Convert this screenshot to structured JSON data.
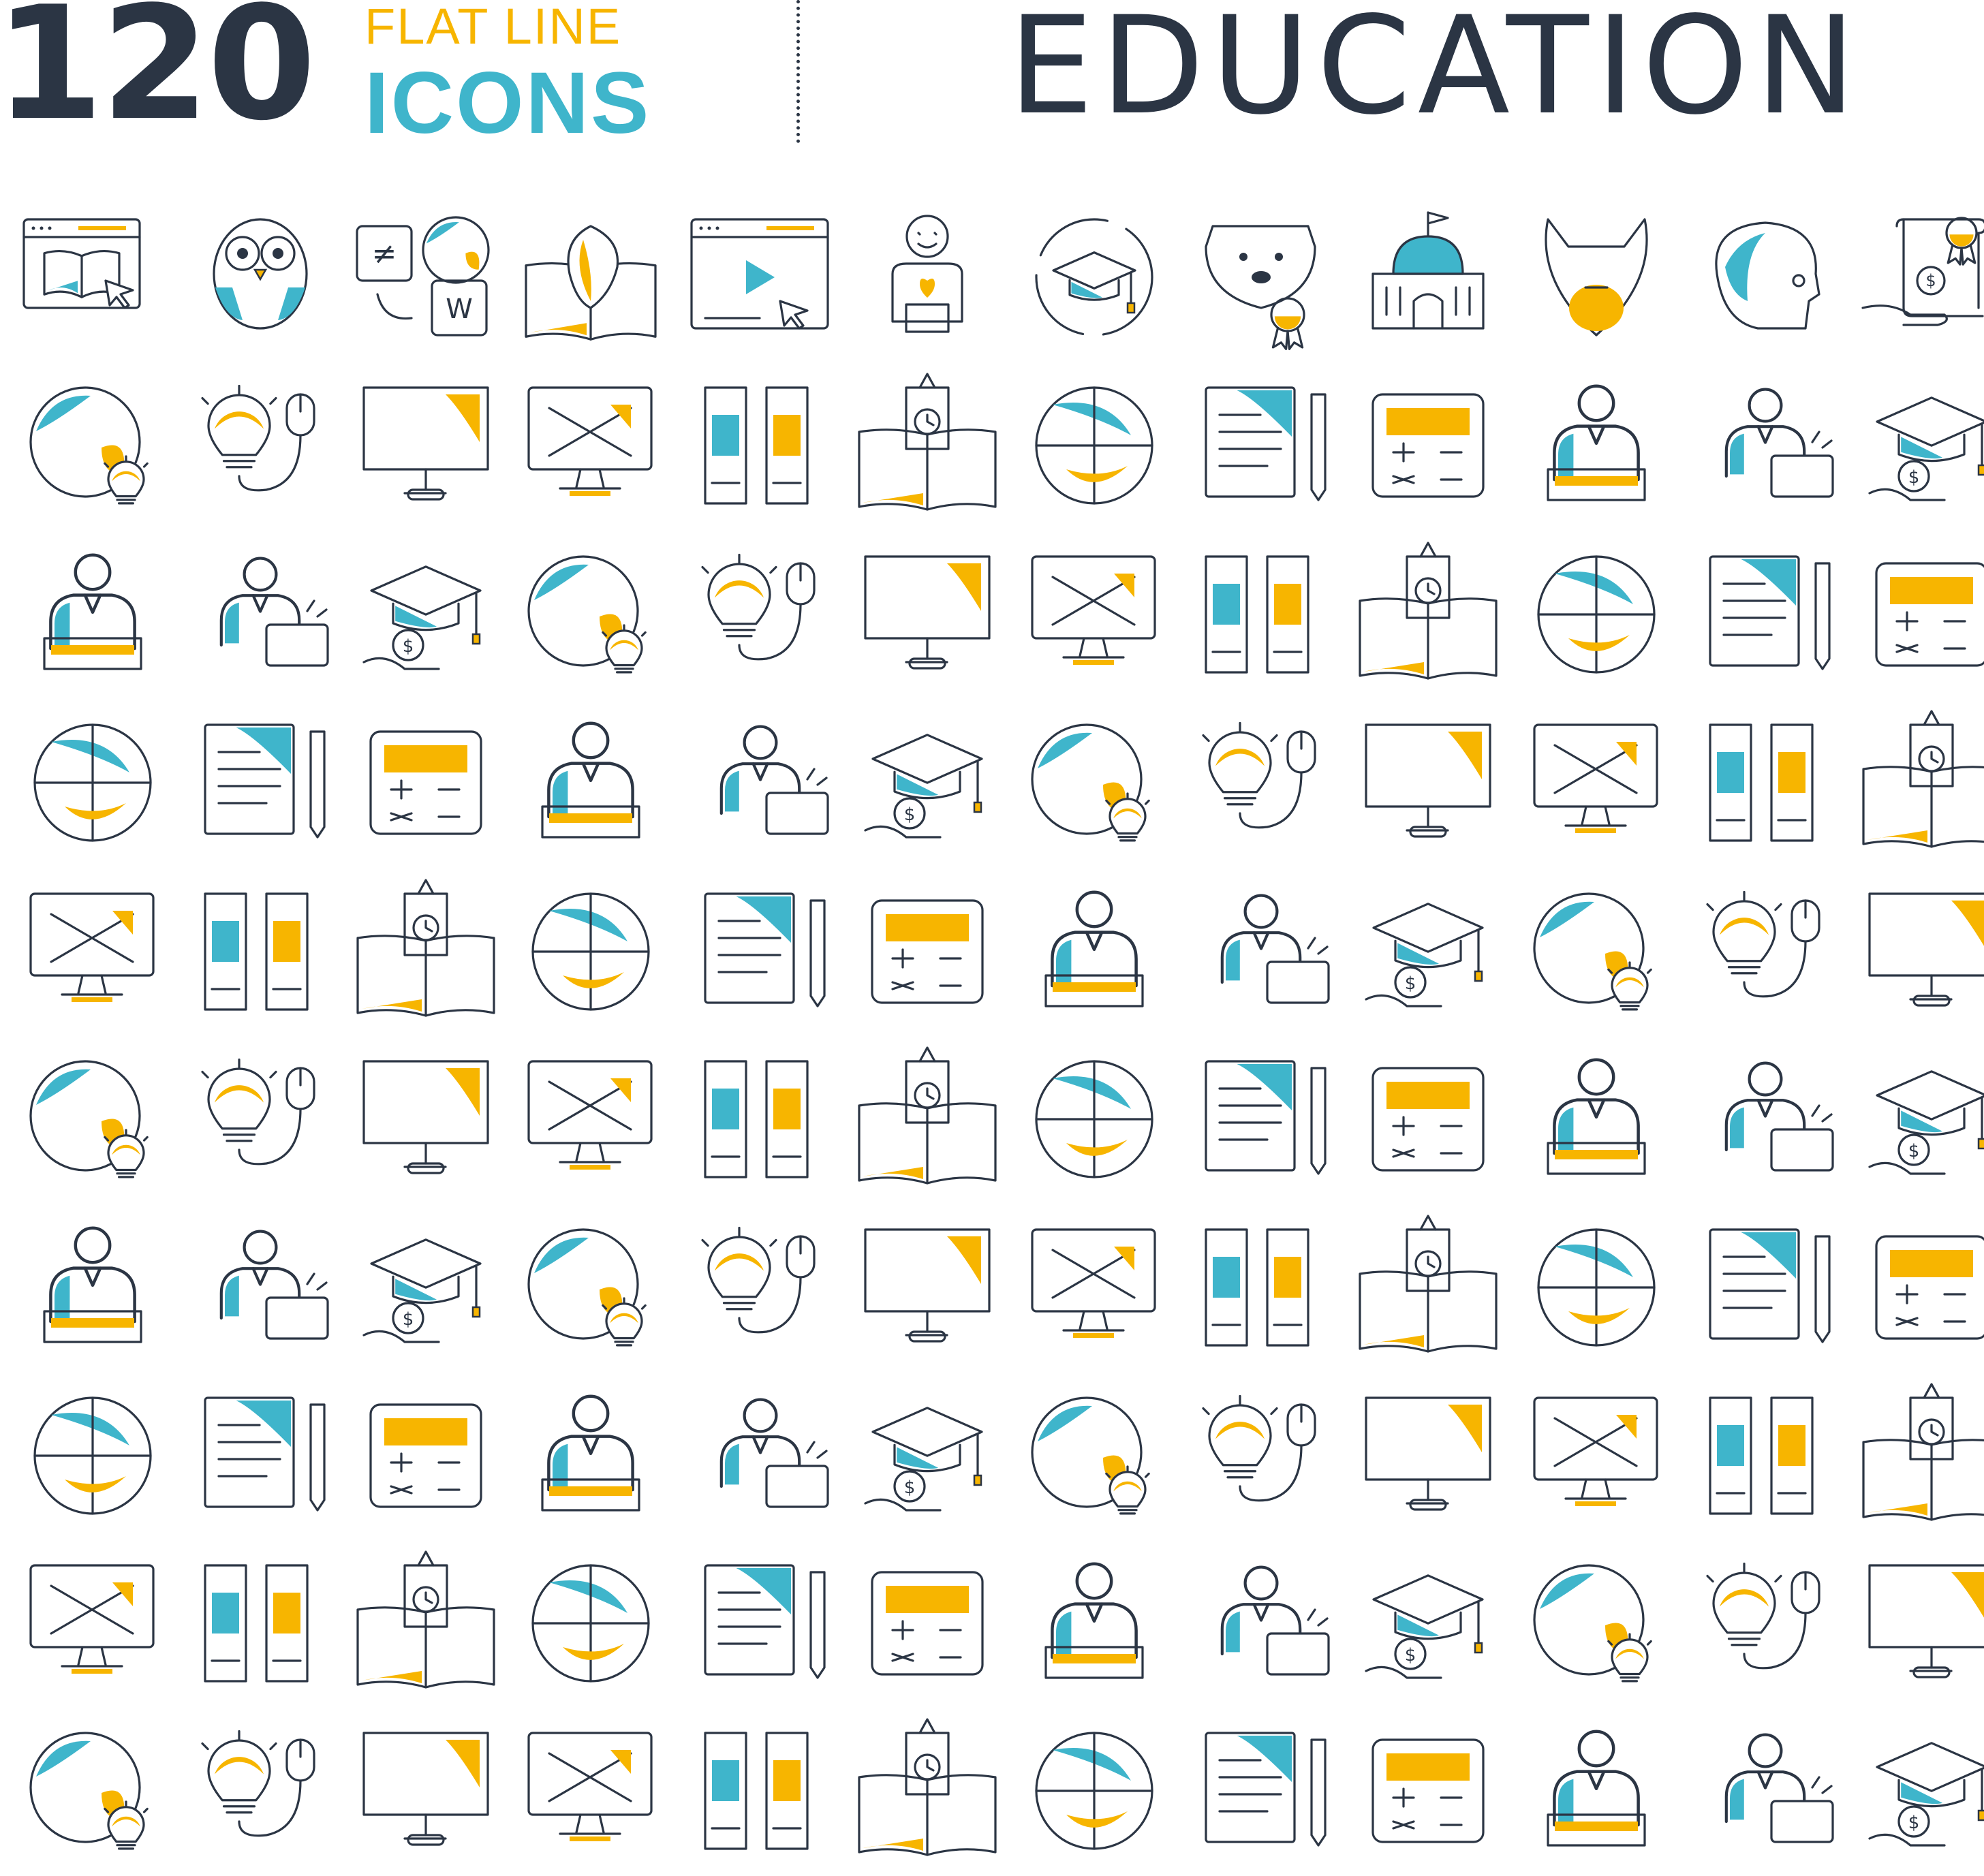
{
  "header": {
    "count": "120",
    "line1": "FLAT LINE",
    "line2": "ICONS",
    "title": "EDUCATION"
  },
  "colors": {
    "ink": "#2b3544",
    "yellow": "#f7b500",
    "blue": "#3fb5cb"
  },
  "icons": [
    "online-book-icon",
    "owl-icon",
    "translation-icon",
    "anatomy-book-icon",
    "video-lesson-icon",
    "robot-icon",
    "graduation-cycle-icon",
    "dog-award-icon",
    "capitol-icon",
    "alien-mask-icon",
    "skull-icon",
    "scholarship-icon",
    "driving-school-icon",
    "art-monitor-icon",
    "abc-teacher-icon",
    "graduate-diploma-icon",
    "london-book-icon",
    "atom-icon",
    "online-teacher-icon",
    "compass-icon",
    "canada-bell-icon",
    "science-teacher-icon",
    "computer-mouse-globe-icon",
    "file-cabinet-icon",
    "stationery-icon",
    "student-laptop-icon",
    "podium-icon",
    "first-place-laurel-icon",
    "protest-sign-icon",
    "tuition-fee-icon",
    "megaphone-icon",
    "statistics-chart-icon",
    "cooking-teacher-icon",
    "audio-book-icon",
    "literature-icon",
    "presentation-board-icon",
    "global-idea-icon",
    "projector-screen-icon",
    "chemistry-icon",
    "lecturer-icon",
    "classroom-icon",
    "reading-student-icon",
    "desk-globe-icon",
    "webinar-icon",
    "documents-icon",
    "business-coach-icon",
    "education-investment-icon",
    "home-study-icon",
    "chess-book-icon",
    "tuba-icon",
    "online-payment-icon",
    "telescope-icon",
    "female-reader-icon",
    "certificate-icon",
    "diploma-scroll-icon",
    "art-palette-icon",
    "cloud-book-icon",
    "dna-research-icon",
    "apple-books-icon",
    "ruler-pencil-icon",
    "discussion-icon",
    "rocket-icon",
    "officer-diploma-icon",
    "astrology-book-icon",
    "binders-icon",
    "idea-mouse-icon",
    "magnet-icon",
    "notes-pencil-icon",
    "female-laptop-icon",
    "binary-code-icon",
    "graduate-speaker-icon",
    "basketball-icon",
    "id-badge-icon",
    "tablet-icon",
    "timer-bell-icon",
    "ear-icon",
    "info-alarm-icon",
    "sneaker-icon",
    "school-bell-icon",
    "trophy-icon",
    "scales-icon",
    "teacher-board-icon",
    "audio-tablet-icon",
    "thinking-head-icon",
    "medal-icon",
    "idea-book-icon",
    "meeting-icon",
    "book-search-icon",
    "add-book-icon",
    "support-headset-icon",
    "school-building-icon",
    "letter-a-student-icon",
    "engineer-diploma-icon",
    "calculator-icon",
    "botany-teacher-icon",
    "microscope-molecule-icon",
    "math-head-icon",
    "female-teacher-diploma-icon",
    "head-idea-icon",
    "translate-swap-icon",
    "potted-plant-icon",
    "student-microphone-icon",
    "ebook-phone-icon",
    "folder-network-icon",
    "speaker-podium-icon",
    "online-form-icon",
    "graduation-case-icon",
    "inbox-tray-icon",
    "vision-icon",
    "signature-icon",
    "keyboard-typing-icon",
    "online-education-icon",
    "idea-network-icon",
    "printer-icon",
    "medical-diploma-icon",
    "calendar-check-icon",
    "glasses-teacher-diploma-icon",
    "driver-graduate-icon",
    "checklist-icon",
    "treasure-map-icon"
  ]
}
